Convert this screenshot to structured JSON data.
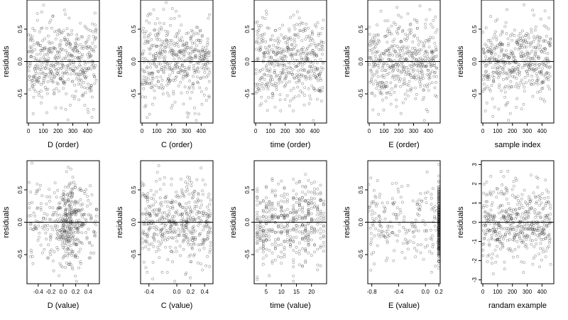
{
  "chart_data": [
    {
      "type": "scatter",
      "xlabel": "D (order)",
      "ylabel": "residuals",
      "xlim": [
        -10,
        480
      ],
      "ylim": [
        -0.95,
        0.95
      ],
      "xticks": [
        0,
        100,
        200,
        300,
        400
      ],
      "xtick_labels": [
        "0",
        "100",
        "200",
        "300",
        "400"
      ],
      "yticks": [
        -0.5,
        0,
        0.5
      ],
      "ytick_labels": [
        "-0.5",
        "0.0",
        "0.5"
      ],
      "reference_line": 0,
      "n_points": 460,
      "x": "sample order 0–460",
      "y_spread": 0.32,
      "seed": 11
    },
    {
      "type": "scatter",
      "xlabel": "C (order)",
      "ylabel": "residuals",
      "xlim": [
        -10,
        480
      ],
      "ylim": [
        -0.95,
        0.95
      ],
      "xticks": [
        0,
        100,
        200,
        300,
        400
      ],
      "xtick_labels": [
        "0",
        "100",
        "200",
        "300",
        "400"
      ],
      "yticks": [
        -0.5,
        0,
        0.5
      ],
      "ytick_labels": [
        "-0.5",
        "0.0",
        "0.5"
      ],
      "reference_line": 0,
      "n_points": 460,
      "x": "sample order 0–460",
      "y_spread": 0.32,
      "seed": 23
    },
    {
      "type": "scatter",
      "xlabel": "time (order)",
      "ylabel": "residuals",
      "xlim": [
        -10,
        480
      ],
      "ylim": [
        -0.95,
        0.95
      ],
      "xticks": [
        0,
        100,
        200,
        300,
        400
      ],
      "xtick_labels": [
        "0",
        "100",
        "200",
        "300",
        "400"
      ],
      "yticks": [
        -0.5,
        0,
        0.5
      ],
      "ytick_labels": [
        "-0.5",
        "0.0",
        "0.5"
      ],
      "reference_line": 0,
      "n_points": 460,
      "x": "sample order 0–460",
      "y_spread": 0.32,
      "seed": 37
    },
    {
      "type": "scatter",
      "xlabel": "E (order)",
      "ylabel": "residuals",
      "xlim": [
        -10,
        480
      ],
      "ylim": [
        -0.95,
        0.95
      ],
      "xticks": [
        0,
        100,
        200,
        300,
        400
      ],
      "xtick_labels": [
        "0",
        "100",
        "200",
        "300",
        "400"
      ],
      "yticks": [
        -0.5,
        0,
        0.5
      ],
      "ytick_labels": [
        "-0.5",
        "0.0",
        "0.5"
      ],
      "reference_line": 0,
      "n_points": 460,
      "x": "sample order 0–460",
      "y_spread": 0.32,
      "seed": 41
    },
    {
      "type": "scatter",
      "xlabel": "sample index",
      "ylabel": "residuals",
      "xlim": [
        -10,
        480
      ],
      "ylim": [
        -0.95,
        0.95
      ],
      "xticks": [
        0,
        100,
        200,
        300,
        400
      ],
      "xtick_labels": [
        "0",
        "100",
        "200",
        "300",
        "400"
      ],
      "yticks": [
        -0.5,
        0,
        0.5
      ],
      "ytick_labels": [
        "-0.5",
        "0.0",
        "0.5"
      ],
      "reference_line": 0,
      "n_points": 460,
      "x": "sample index 0–460",
      "y_spread": 0.32,
      "seed": 53
    },
    {
      "type": "scatter",
      "xlabel": "D (value)",
      "ylabel": "residuals",
      "xlim": [
        -0.58,
        0.58
      ],
      "ylim": [
        -0.95,
        0.95
      ],
      "xticks": [
        -0.4,
        -0.2,
        0,
        0.2,
        0.4
      ],
      "xtick_labels": [
        "-0.4",
        "-0.2",
        "0.0",
        "0.2",
        "0.4"
      ],
      "yticks": [
        -0.5,
        0,
        0.5
      ],
      "ytick_labels": [
        "-0.5",
        "0.0",
        "0.5"
      ],
      "reference_line": 0,
      "n_points": 460,
      "x": "D values -0.55 to 0.55, densest near 0.1",
      "y_spread": 0.32,
      "seed": 61
    },
    {
      "type": "scatter",
      "xlabel": "C (value)",
      "ylabel": "residuals",
      "xlim": [
        -0.52,
        0.52
      ],
      "ylim": [
        -0.95,
        0.95
      ],
      "xticks": [
        -0.4,
        0,
        0.2,
        0.4
      ],
      "xtick_labels": [
        "-0.4",
        "0.0",
        "0.2",
        "0.4"
      ],
      "yticks": [
        -0.5,
        0,
        0.5
      ],
      "ytick_labels": [
        "-0.5",
        "0.0",
        "0.5"
      ],
      "reference_line": 0,
      "n_points": 460,
      "x": "C values -0.5 to 0.5",
      "y_spread": 0.32,
      "seed": 71
    },
    {
      "type": "scatter",
      "xlabel": "time (value)",
      "ylabel": "residuals",
      "xlim": [
        1,
        25
      ],
      "ylim": [
        -0.95,
        0.95
      ],
      "xticks": [
        5,
        10,
        15,
        20
      ],
      "xtick_labels": [
        "5",
        "10",
        "15",
        "20"
      ],
      "yticks": [
        -0.5,
        0,
        0.5
      ],
      "ytick_labels": [
        "-0.5",
        "0.0",
        "0.5"
      ],
      "reference_line": 0,
      "n_points": 460,
      "x": "integer time values 2–24",
      "y_spread": 0.32,
      "seed": 83
    },
    {
      "type": "scatter",
      "xlabel": "E (value)",
      "ylabel": "residuals",
      "xlim": [
        -0.86,
        0.22
      ],
      "ylim": [
        -0.95,
        0.95
      ],
      "xticks": [
        -0.8,
        -0.4,
        0,
        0.2
      ],
      "xtick_labels": [
        "-0.8",
        "-0.4",
        "0.0",
        "0.2"
      ],
      "yticks": [
        -0.5,
        0,
        0.5
      ],
      "ytick_labels": [
        "-0.5",
        "0.0",
        "0.5"
      ],
      "reference_line": 0,
      "n_points": 460,
      "x": "E values -0.85 to 0.2, most points stacked at 0.2",
      "y_spread": 0.32,
      "seed": 97
    },
    {
      "type": "scatter",
      "xlabel": "randam example",
      "ylabel": "residuals",
      "xlim": [
        -10,
        480
      ],
      "ylim": [
        -3.2,
        3.2
      ],
      "xticks": [
        0,
        100,
        200,
        300,
        400
      ],
      "xtick_labels": [
        "0",
        "100",
        "200",
        "300",
        "400"
      ],
      "yticks": [
        -3,
        -2,
        -1,
        0,
        1,
        2,
        3
      ],
      "ytick_labels": [
        "-3",
        "-2",
        "-1",
        "0",
        "1",
        "2",
        "3"
      ],
      "reference_line": 0,
      "n_points": 460,
      "x": "sample index 0–460",
      "y_spread": 1.0,
      "seed": 103
    }
  ]
}
